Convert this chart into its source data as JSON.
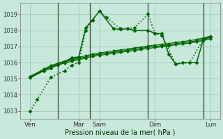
{
  "bg_color": "#c8e8dc",
  "grid_color": "#a0c8b8",
  "line_color": "#006600",
  "xlabel": "Pression niveau de la mer( hPa )",
  "ylim": [
    1012.5,
    1019.7
  ],
  "yticks": [
    1013,
    1014,
    1015,
    1016,
    1017,
    1018,
    1019
  ],
  "xlim": [
    -0.2,
    14.2
  ],
  "num_x": 14,
  "xtick_labels": [
    "Ven",
    "Mar",
    "Sam",
    "Dim",
    "Lun"
  ],
  "xtick_positions": [
    0.5,
    4.0,
    5.5,
    9.5,
    13.5
  ],
  "vlines_x": [
    2.5,
    4.8,
    9.0,
    13.0
  ],
  "lines": [
    {
      "x": [
        0.5,
        1.0,
        2.0,
        3.0,
        3.5,
        4.0,
        4.5,
        5.0,
        5.5,
        6.0,
        7.0,
        8.0,
        9.0,
        9.5,
        10.0,
        11.0,
        12.0,
        13.0,
        13.5
      ],
      "y": [
        1013.0,
        1013.7,
        1015.1,
        1015.5,
        1015.85,
        1016.0,
        1018.0,
        1018.65,
        1019.2,
        1018.8,
        1018.1,
        1018.15,
        1019.0,
        1017.8,
        1017.7,
        1015.9,
        1016.0,
        1017.45,
        1017.6
      ],
      "style": ":",
      "lw": 1.2,
      "marker": "D",
      "ms": 2.5
    },
    {
      "x": [
        0.5,
        1.5,
        2.0,
        2.5,
        3.0,
        3.5,
        4.0,
        4.5,
        5.0,
        5.5,
        6.5,
        7.0,
        7.5,
        8.0,
        9.0,
        9.5,
        10.0,
        10.5,
        11.0,
        11.5,
        12.5,
        13.0,
        13.5
      ],
      "y": [
        1015.1,
        1015.5,
        1015.65,
        1015.9,
        1016.05,
        1016.3,
        1016.35,
        1018.15,
        1018.65,
        1019.2,
        1018.1,
        1018.05,
        1018.1,
        1018.0,
        1018.0,
        1017.8,
        1017.8,
        1016.5,
        1015.9,
        1016.0,
        1016.0,
        1017.45,
        1017.6
      ],
      "style": "-",
      "lw": 1.1,
      "marker": "D",
      "ms": 2.5
    },
    {
      "x": [
        0.5,
        1.5,
        2.0,
        2.5,
        3.0,
        3.5,
        4.0,
        4.5,
        5.0,
        5.5,
        6.0,
        6.5,
        7.0,
        7.5,
        8.0,
        8.5,
        9.0,
        9.5,
        10.0,
        10.5,
        11.0,
        11.5,
        12.0,
        12.5,
        13.0,
        13.5
      ],
      "y": [
        1015.1,
        1015.55,
        1015.75,
        1015.9,
        1016.05,
        1016.15,
        1016.25,
        1016.35,
        1016.45,
        1016.52,
        1016.58,
        1016.64,
        1016.7,
        1016.76,
        1016.82,
        1016.88,
        1016.95,
        1017.0,
        1017.05,
        1017.1,
        1017.18,
        1017.22,
        1017.28,
        1017.35,
        1017.45,
        1017.55
      ],
      "style": "-",
      "lw": 0.9,
      "marker": "D",
      "ms": 2.0
    },
    {
      "x": [
        0.5,
        1.5,
        2.0,
        2.5,
        3.0,
        3.5,
        4.0,
        4.5,
        5.0,
        5.5,
        6.0,
        6.5,
        7.0,
        7.5,
        8.0,
        8.5,
        9.0,
        9.5,
        10.0,
        10.5,
        11.0,
        11.5,
        12.0,
        12.5,
        13.0,
        13.5
      ],
      "y": [
        1015.15,
        1015.6,
        1015.82,
        1015.96,
        1016.1,
        1016.22,
        1016.32,
        1016.42,
        1016.52,
        1016.6,
        1016.66,
        1016.72,
        1016.78,
        1016.84,
        1016.9,
        1016.96,
        1017.03,
        1017.08,
        1017.13,
        1017.18,
        1017.26,
        1017.3,
        1017.36,
        1017.43,
        1017.53,
        1017.63
      ],
      "style": "-",
      "lw": 0.9,
      "marker": "D",
      "ms": 2.0
    },
    {
      "x": [
        0.5,
        1.5,
        2.0,
        2.5,
        3.0,
        3.5,
        4.0,
        4.5,
        5.0,
        5.5,
        6.0,
        6.5,
        7.0,
        7.5,
        8.0,
        8.5,
        9.0,
        9.5,
        10.0,
        10.5,
        11.0,
        11.5,
        12.0,
        12.5,
        13.0,
        13.5
      ],
      "y": [
        1015.05,
        1015.5,
        1015.68,
        1015.84,
        1015.98,
        1016.08,
        1016.18,
        1016.28,
        1016.38,
        1016.45,
        1016.51,
        1016.57,
        1016.63,
        1016.69,
        1016.75,
        1016.81,
        1016.88,
        1016.93,
        1016.98,
        1017.03,
        1017.11,
        1017.15,
        1017.21,
        1017.28,
        1017.38,
        1017.48
      ],
      "style": "-",
      "lw": 0.9,
      "marker": "D",
      "ms": 2.0
    }
  ]
}
